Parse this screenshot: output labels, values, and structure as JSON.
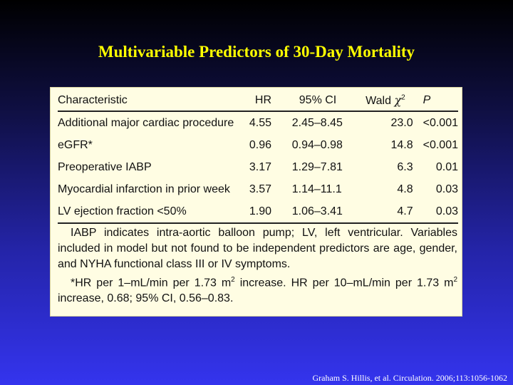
{
  "title": "Multivariable Predictors of 30-Day Mortality",
  "table": {
    "headers": {
      "characteristic": "Characteristic",
      "hr": "HR",
      "ci": "95% CI",
      "wald": "Wald",
      "wald_symbol": "χ",
      "wald_exp": "2",
      "p": "P"
    },
    "rows": [
      {
        "characteristic": "Additional major cardiac procedure",
        "hr": "4.55",
        "ci": "2.45–8.45",
        "wald": "23.0",
        "p": "<0.001"
      },
      {
        "characteristic": "eGFR*",
        "hr": "0.96",
        "ci": "0.94–0.98",
        "wald": "14.8",
        "p": "<0.001"
      },
      {
        "characteristic": "Preoperative IABP",
        "hr": "3.17",
        "ci": "1.29–7.81",
        "wald": "6.3",
        "p": "0.01"
      },
      {
        "characteristic": "Myocardial infarction in prior week",
        "hr": "3.57",
        "ci": "1.14–11.1",
        "wald": "4.8",
        "p": "0.03"
      },
      {
        "characteristic": "LV ejection fraction <50%",
        "hr": "1.90",
        "ci": "1.06–3.41",
        "wald": "4.7",
        "p": "0.03"
      }
    ]
  },
  "footnote": {
    "para1": "IABP indicates intra-aortic balloon pump; LV, left ventricular. Variables included in model but not found to be independent predictors are age, gender, and NYHA functional class III or IV symptoms.",
    "para2_a": "*HR per 1–mL/min per 1.73 m",
    "para2_sup1": "2",
    "para2_b": " increase. HR per 10–mL/min per 1.73 m",
    "para2_sup2": "2",
    "para2_c": " increase, 0.68; 95% CI, 0.56–0.83."
  },
  "citation": "Graham S. Hillis, et al. Circulation. 2006;113:1056-1062"
}
